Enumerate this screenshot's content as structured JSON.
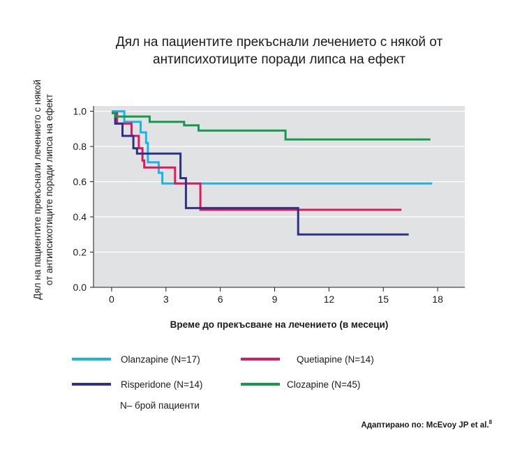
{
  "chart_data": {
    "type": "line",
    "step": true,
    "title_lines": [
      "Дял на пациентите прекъснали лечението с някой от",
      "антипсихотиците поради липса на ефект"
    ],
    "ylabel_lines": [
      "Дял на пациентите прекъснали лечението с някой",
      "от антипсихотиците поради липса на ефект"
    ],
    "xlabel": "Време до прекъсване на лечението (в месеци)",
    "xlim": [
      -1,
      19.5
    ],
    "ylim": [
      0,
      1.03
    ],
    "x_ticks": [
      "0",
      "3",
      "6",
      "9",
      "12",
      "15",
      "18"
    ],
    "x_tick_values": [
      0,
      3,
      6,
      9,
      12,
      15,
      18
    ],
    "y_ticks": [
      "0.0",
      "0.2",
      "0.4",
      "0.6",
      "0.8",
      "1.0"
    ],
    "y_tick_values": [
      0,
      0.2,
      0.4,
      0.6,
      0.8,
      1.0
    ],
    "grid": "horizontal",
    "plot_background": "#e1e2e4",
    "series": [
      {
        "name": "Olanzapine (N=17)",
        "color": "#1ab4e8",
        "points": [
          [
            0,
            1.0
          ],
          [
            0.7,
            1.0
          ],
          [
            0.7,
            0.94
          ],
          [
            1.6,
            0.94
          ],
          [
            1.6,
            0.88
          ],
          [
            1.9,
            0.88
          ],
          [
            1.9,
            0.82
          ],
          [
            2.0,
            0.82
          ],
          [
            2.0,
            0.76
          ],
          [
            2.0,
            0.76
          ],
          [
            2.0,
            0.71
          ],
          [
            2.6,
            0.71
          ],
          [
            2.6,
            0.65
          ],
          [
            2.8,
            0.65
          ],
          [
            2.8,
            0.59
          ],
          [
            17.7,
            0.59
          ]
        ]
      },
      {
        "name": "Quetiapine (N=14)",
        "color": "#e0195b",
        "points": [
          [
            0,
            0.99
          ],
          [
            0.3,
            0.99
          ],
          [
            0.3,
            0.93
          ],
          [
            1.1,
            0.93
          ],
          [
            1.1,
            0.86
          ],
          [
            1.5,
            0.86
          ],
          [
            1.5,
            0.79
          ],
          [
            1.7,
            0.79
          ],
          [
            1.7,
            0.72
          ],
          [
            1.8,
            0.72
          ],
          [
            1.8,
            0.68
          ],
          [
            3.5,
            0.68
          ],
          [
            3.5,
            0.59
          ],
          [
            4.9,
            0.59
          ],
          [
            4.9,
            0.44
          ],
          [
            16.0,
            0.44
          ]
        ]
      },
      {
        "name": "Risperidone (N=14)",
        "color": "#2e3188",
        "points": [
          [
            0,
            0.99
          ],
          [
            0.2,
            0.99
          ],
          [
            0.2,
            0.93
          ],
          [
            0.6,
            0.93
          ],
          [
            0.6,
            0.86
          ],
          [
            1.2,
            0.86
          ],
          [
            1.2,
            0.79
          ],
          [
            1.4,
            0.79
          ],
          [
            1.4,
            0.76
          ],
          [
            3.8,
            0.76
          ],
          [
            3.8,
            0.62
          ],
          [
            4.1,
            0.62
          ],
          [
            4.1,
            0.45
          ],
          [
            10.3,
            0.45
          ],
          [
            10.3,
            0.3
          ],
          [
            16.4,
            0.3
          ]
        ]
      },
      {
        "name": "Clozapine (N=45)",
        "color": "#159a4c",
        "points": [
          [
            0,
            0.99
          ],
          [
            0.2,
            0.99
          ],
          [
            0.2,
            0.97
          ],
          [
            2.1,
            0.97
          ],
          [
            2.1,
            0.94
          ],
          [
            4.0,
            0.94
          ],
          [
            4.0,
            0.92
          ],
          [
            4.8,
            0.92
          ],
          [
            4.8,
            0.89
          ],
          [
            9.6,
            0.89
          ],
          [
            9.6,
            0.84
          ],
          [
            17.6,
            0.84
          ]
        ]
      }
    ]
  },
  "legend": [
    {
      "label": "Olanzapine (N=17)",
      "color": "#1ab4e8"
    },
    {
      "label": "Quetiapine (N=14)",
      "color": "#e0195b"
    },
    {
      "label": "Risperidone (N=14)",
      "color": "#2e3188"
    },
    {
      "label": "Clozapine (N=45)",
      "color": "#159a4c"
    }
  ],
  "note": "N– брой пациенти",
  "source": "Адаптирано по: McEvoy JP et al.",
  "source_ref": "8"
}
